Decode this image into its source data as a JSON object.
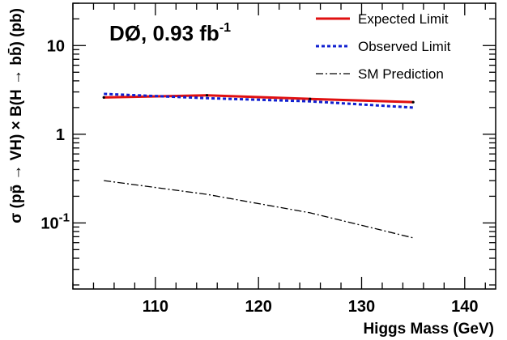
{
  "chart_data": {
    "type": "line",
    "title": "DØ, 0.93 fb",
    "title_superscript": "-1",
    "xlabel": "Higgs Mass (GeV)",
    "ylabel": "σ (pp̄ → VH) × B(H → bb̄) (pb)",
    "xlim": [
      102,
      143
    ],
    "ylim": [
      0.018,
      30
    ],
    "yscale": "log",
    "grid": false,
    "legend_position": "top-right",
    "x_ticks": [
      110,
      120,
      130,
      140
    ],
    "y_ticks": [
      {
        "value": 0.1,
        "base": "10",
        "exp": "-1"
      },
      {
        "value": 1,
        "base": "1",
        "exp": ""
      },
      {
        "value": 10,
        "base": "10",
        "exp": ""
      }
    ],
    "series": [
      {
        "name": "Expected Limit",
        "color": "#e01010",
        "dash": "solid",
        "markers": true,
        "x": [
          105,
          115,
          125,
          135
        ],
        "y": [
          2.6,
          2.75,
          2.5,
          2.3
        ]
      },
      {
        "name": "Observed Limit",
        "color": "#1020d0",
        "dash": "dotted",
        "markers": false,
        "x": [
          105,
          115,
          125,
          135
        ],
        "y": [
          2.85,
          2.55,
          2.35,
          2.0
        ]
      },
      {
        "name": "SM Prediction",
        "color": "#000000",
        "dash": "dashdot",
        "markers": false,
        "x": [
          105,
          115,
          125,
          135
        ],
        "y": [
          0.3,
          0.21,
          0.13,
          0.068
        ]
      }
    ]
  }
}
